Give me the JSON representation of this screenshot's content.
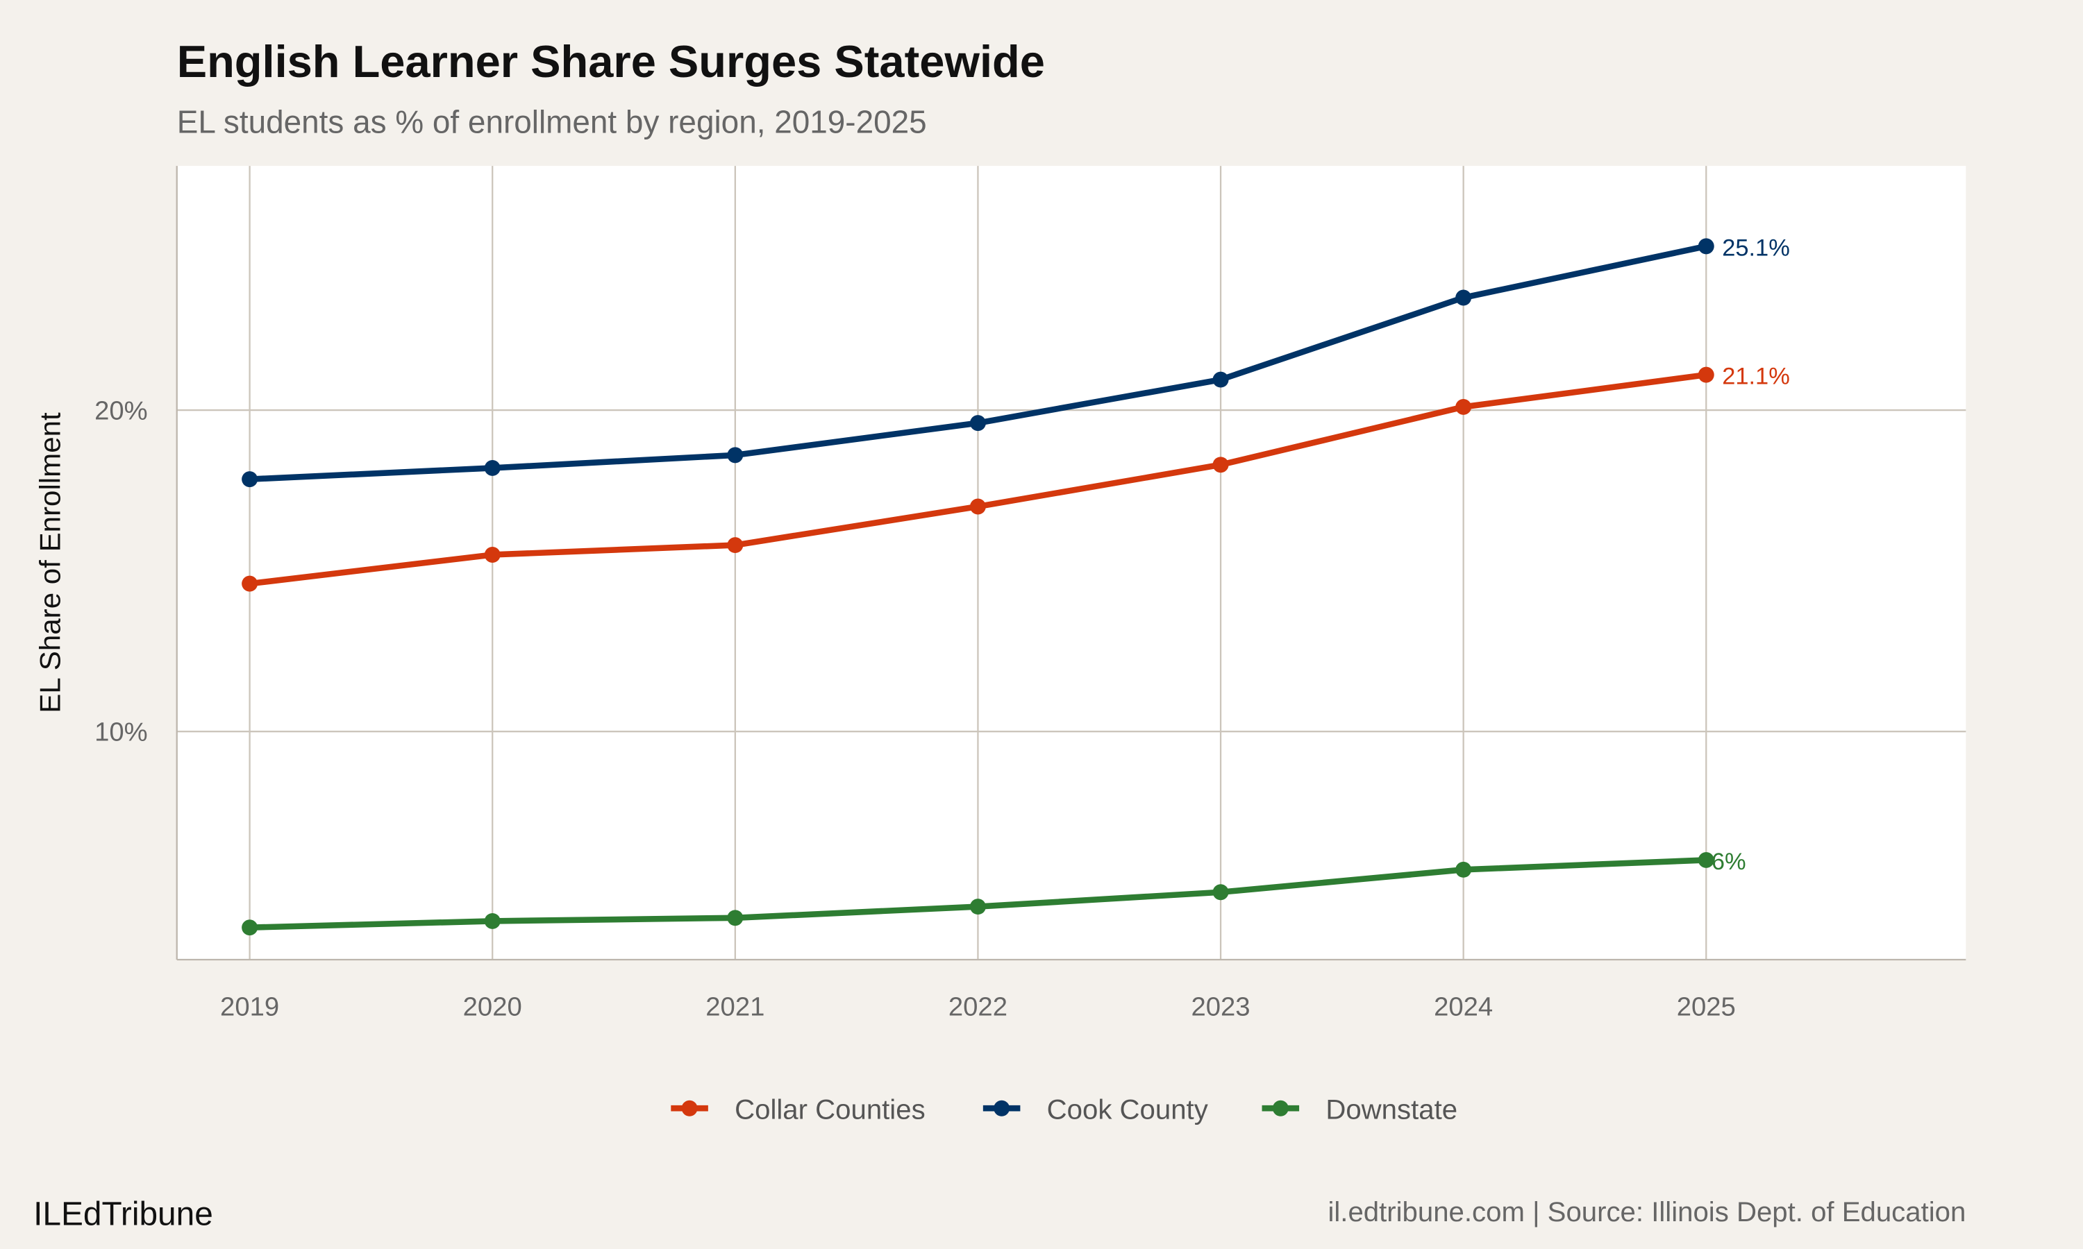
{
  "chart_data": {
    "type": "line",
    "title": "English Learner Share Surges Statewide",
    "subtitle": "EL students as % of enrollment by region, 2019-2025",
    "xlabel": "",
    "ylabel": "EL Share of Enrollment",
    "x": [
      2019,
      2020,
      2021,
      2022,
      2023,
      2024,
      2025
    ],
    "x_tick_labels": [
      "2019",
      "2020",
      "2021",
      "2022",
      "2023",
      "2024",
      "2025"
    ],
    "y_ticks": [
      10,
      20
    ],
    "y_tick_labels": [
      "10%",
      "20%"
    ],
    "xlim": [
      2018.7,
      2026.07
    ],
    "ylim": [
      2.9,
      27.6
    ],
    "grid": true,
    "legend_position": "bottom",
    "series": [
      {
        "name": "Collar Counties",
        "color": "#d4380d",
        "values": [
          14.6,
          15.5,
          15.8,
          17.0,
          18.3,
          20.1,
          21.1
        ],
        "end_label": "21.1%"
      },
      {
        "name": "Cook County",
        "color": "#003366",
        "values": [
          17.85,
          18.2,
          18.6,
          19.6,
          20.95,
          23.5,
          25.1
        ],
        "end_label": "25.1%"
      },
      {
        "name": "Downstate",
        "color": "#2e7d32",
        "values": [
          3.9,
          4.1,
          4.2,
          4.55,
          5.0,
          5.7,
          6.0
        ],
        "end_label": "6%"
      }
    ]
  },
  "footer": {
    "brand": "ILEdTribune",
    "source": "il.edtribune.com | Source: Illinois Dept. of Education"
  }
}
